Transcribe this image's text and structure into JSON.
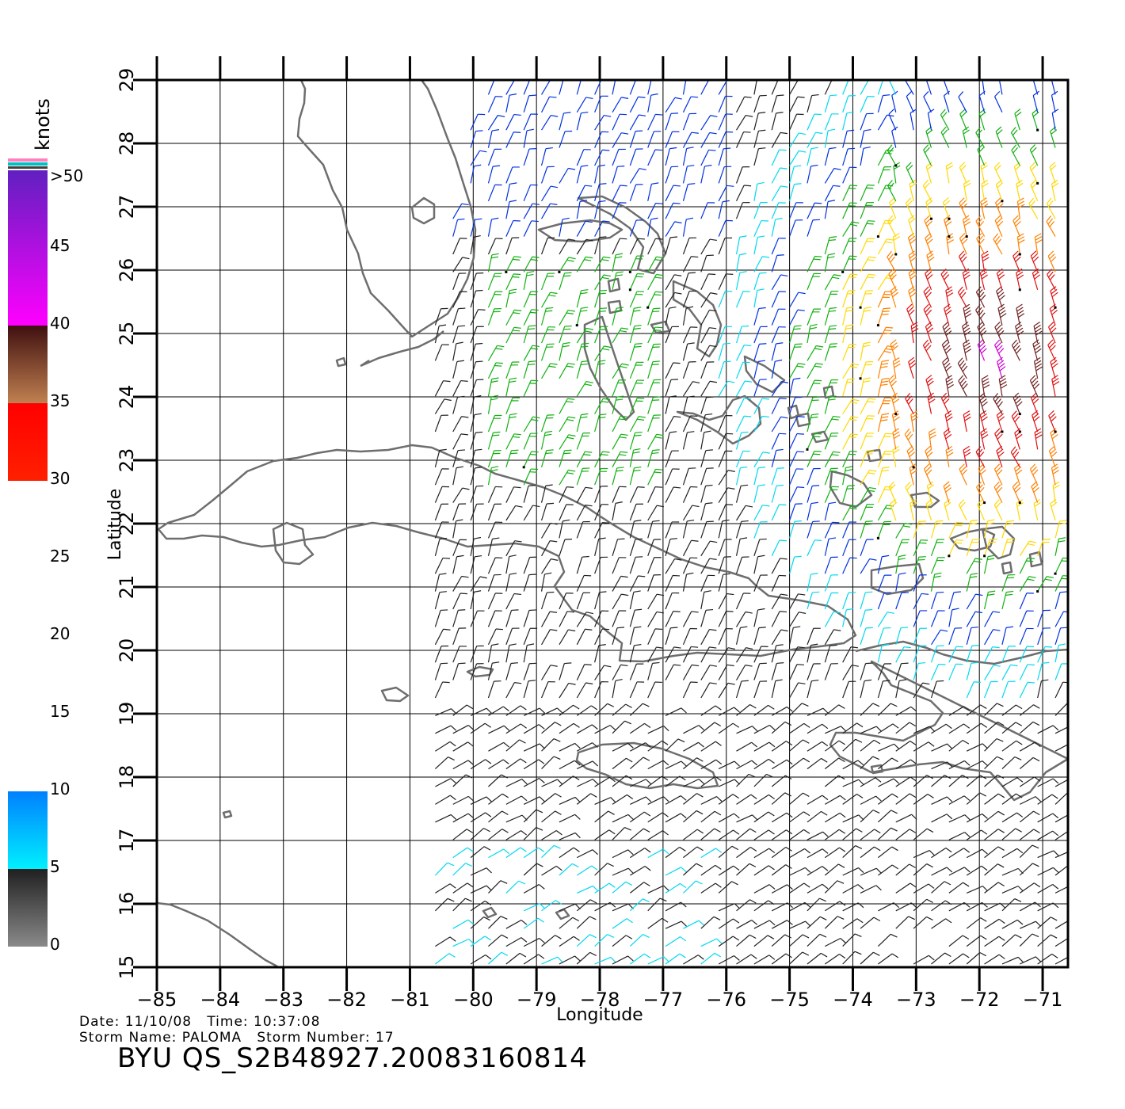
{
  "map": {
    "xlabel": "Longitude",
    "ylabel": "Latitude",
    "lon_range": [
      -85,
      -70.6
    ],
    "lat_range": [
      15,
      29
    ],
    "lon_ticks": [
      -85,
      -84,
      -83,
      -82,
      -81,
      -80,
      -79,
      -78,
      -77,
      -76,
      -75,
      -74,
      -73,
      -72,
      -71
    ],
    "lon_tick_labels": [
      "−85",
      "−84",
      "−83",
      "−82",
      "−81",
      "−80",
      "−79",
      "−78",
      "−77",
      "−76",
      "−75",
      "−74",
      "−73",
      "−72",
      "−71"
    ],
    "lat_ticks": [
      15,
      16,
      17,
      18,
      19,
      20,
      21,
      22,
      23,
      24,
      25,
      26,
      27,
      28,
      29
    ],
    "lat_tick_labels": [
      "15",
      "16",
      "17",
      "18",
      "19",
      "20",
      "21",
      "22",
      "23",
      "24",
      "25",
      "26",
      "27",
      "28",
      "29"
    ],
    "grid": true,
    "coastline_color": "#6e6e6e",
    "wind_vectors": "wind barbs colored by speed (knots)"
  },
  "legend": {
    "units": "knots",
    "labels": [
      {
        "value": 50,
        "text": ">50"
      },
      {
        "value": 45,
        "text": "45"
      },
      {
        "value": 40,
        "text": "40"
      },
      {
        "value": 35,
        "text": "35"
      },
      {
        "value": 30,
        "text": "30"
      },
      {
        "value": 25,
        "text": "25"
      },
      {
        "value": 20,
        "text": "20"
      },
      {
        "value": 15,
        "text": "15"
      },
      {
        "value": 10,
        "text": "10"
      },
      {
        "value": 5,
        "text": "5"
      },
      {
        "value": 0,
        "text": "0"
      }
    ],
    "color_stops": [
      {
        "value": 0,
        "color": "#8a8a8a"
      },
      {
        "value": 5,
        "color": "#202020"
      },
      {
        "value": 5,
        "color": "#00f0ff"
      },
      {
        "value": 10,
        "color": "#0080ff"
      },
      {
        "value": 15,
        "color": "#0000ff"
      },
      {
        "value": 15,
        "color": "#006400"
      },
      {
        "value": 20,
        "color": "#00ff00"
      },
      {
        "value": 20,
        "color": "#ffff20"
      },
      {
        "value": 25,
        "color": "#ffc000"
      },
      {
        "value": 25,
        "color": "#ff8000"
      },
      {
        "value": 30,
        "color": "#ff2000"
      },
      {
        "value": 35,
        "color": "#ff0000"
      },
      {
        "value": 35,
        "color": "#c08050"
      },
      {
        "value": 40,
        "color": "#401010"
      },
      {
        "value": 40,
        "color": "#ff00ff"
      },
      {
        "value": 50,
        "color": "#6020c0"
      }
    ]
  },
  "meta": {
    "line1": "Date: 11/10/08   Time: 10:37:08",
    "line2": "Storm Name: PALOMA   Storm Number: 17",
    "title": "BYU QS_S2B48927.20083160814"
  }
}
